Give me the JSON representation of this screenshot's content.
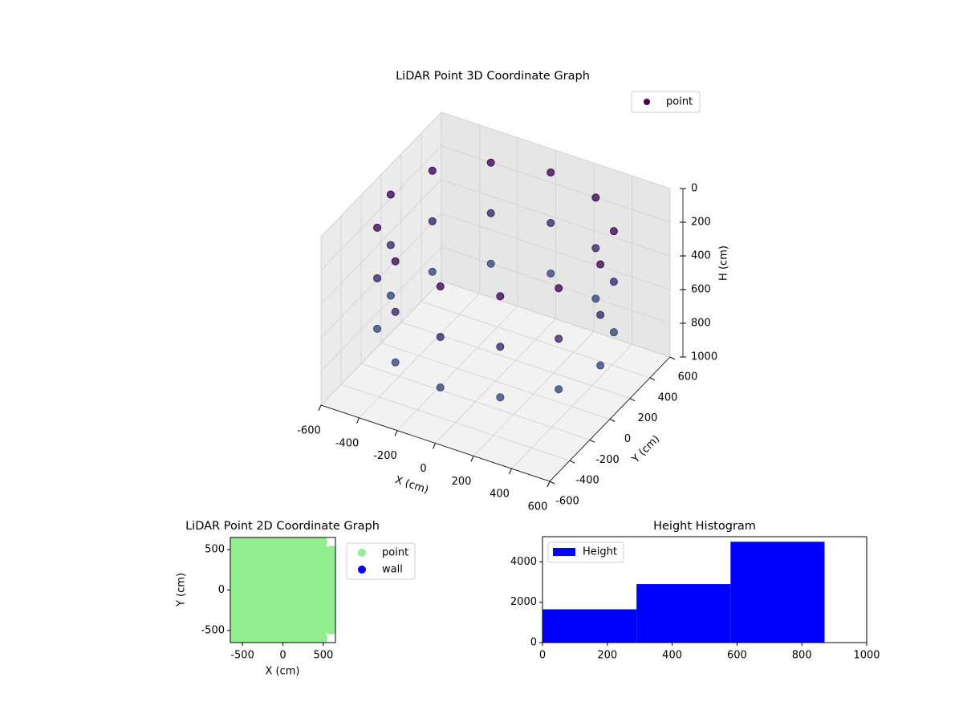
{
  "chart_data": [
    {
      "type": "scatter3d",
      "title": "LiDAR Point 3D Coordinate Graph",
      "x_label": "X (cm)",
      "y_label": "Y (cm)",
      "z_label": "H (cm)",
      "xlim": [
        -600,
        600
      ],
      "ylim": [
        -600,
        600
      ],
      "zlim": [
        0,
        1000
      ],
      "z_inverted": true,
      "xticks": [
        -600,
        -400,
        -200,
        0,
        200,
        400,
        600
      ],
      "yticks": [
        -600,
        -400,
        -200,
        0,
        200,
        400,
        600
      ],
      "zticks": [
        0,
        200,
        400,
        600,
        800,
        1000
      ],
      "grid": true,
      "legend": "upper right",
      "colormap": [
        "#440154",
        "#31688e"
      ],
      "series": [
        {
          "name": "point",
          "color": "#440154",
          "x": [
            550,
            476,
            275,
            0,
            -275,
            -476,
            -550,
            -476,
            -275,
            0,
            275,
            476,
            550,
            476,
            275,
            0,
            -275,
            -476,
            -550,
            -476,
            -275,
            0,
            275,
            476,
            550,
            476,
            275,
            0,
            -275,
            -476,
            -550,
            -476,
            -275,
            0,
            275,
            476
          ],
          "y": [
            0,
            275,
            476,
            550,
            476,
            275,
            0,
            -275,
            -476,
            -550,
            -476,
            -275,
            0,
            275,
            476,
            550,
            476,
            275,
            0,
            -275,
            -476,
            -550,
            -476,
            -275,
            0,
            275,
            476,
            550,
            476,
            275,
            0,
            -275,
            -476,
            -550,
            -476,
            -275
          ],
          "z": [
            100,
            100,
            100,
            100,
            100,
            100,
            100,
            100,
            100,
            100,
            100,
            100,
            400,
            400,
            400,
            400,
            400,
            400,
            400,
            400,
            400,
            400,
            400,
            400,
            700,
            700,
            700,
            700,
            700,
            700,
            700,
            700,
            700,
            700,
            700,
            700
          ]
        }
      ]
    },
    {
      "type": "scatter",
      "title": "LiDAR Point 2D Coordinate Graph",
      "x_label": "X (cm)",
      "y_label": "Y (cm)",
      "xlim": [
        -650,
        650
      ],
      "ylim": [
        -650,
        650
      ],
      "xticks": [
        -500,
        0,
        500
      ],
      "yticks": [
        -500,
        0,
        500
      ],
      "legend": "outside right",
      "series": [
        {
          "name": "point",
          "color": "#90ee90",
          "x": [
            -600,
            -400,
            -200,
            0,
            200,
            400,
            -600,
            -400,
            -200,
            0,
            200,
            400,
            600,
            -600,
            -400,
            -200,
            0,
            200,
            400,
            600,
            -600,
            -400,
            -200,
            0,
            200,
            400,
            600,
            -600,
            -400,
            -200,
            0,
            200,
            400,
            600,
            -600,
            -400,
            -200,
            0,
            200,
            400,
            600,
            -600,
            -400,
            -200,
            0,
            200,
            400
          ],
          "y": [
            600,
            600,
            600,
            600,
            600,
            600,
            400,
            400,
            400,
            400,
            400,
            400,
            400,
            200,
            200,
            200,
            200,
            200,
            200,
            200,
            0,
            0,
            0,
            0,
            0,
            0,
            0,
            -200,
            -200,
            -200,
            -200,
            -200,
            -200,
            -200,
            -400,
            -400,
            -400,
            -400,
            -400,
            -400,
            -400,
            -600,
            -600,
            -600,
            -600,
            -600,
            -600
          ]
        },
        {
          "name": "wall",
          "color": "#0000ff",
          "x": [],
          "y": []
        }
      ]
    },
    {
      "type": "histogram",
      "title": "Height Histogram",
      "legend": "upper left",
      "bins": [
        0,
        290,
        580,
        870
      ],
      "series": [
        {
          "name": "Height",
          "color": "#0000ff",
          "values": [
            1650,
            2900,
            5000
          ]
        }
      ],
      "xlim": [
        0,
        1000
      ],
      "ylim": [
        0,
        5250
      ],
      "xticks": [
        0,
        200,
        400,
        600,
        800,
        1000
      ],
      "yticks": [
        0,
        2000,
        4000
      ]
    }
  ]
}
